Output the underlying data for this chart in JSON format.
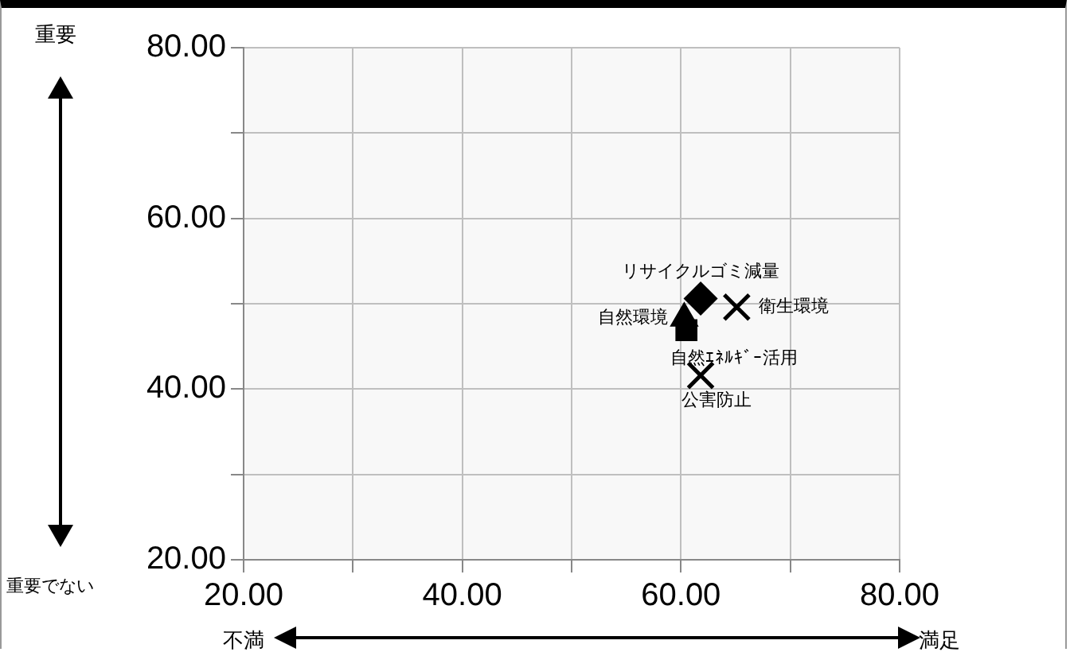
{
  "chart_data": {
    "type": "scatter",
    "xlim": [
      20,
      80
    ],
    "ylim": [
      20,
      80
    ],
    "xticks": [
      {
        "value": 20,
        "label": "20.00"
      },
      {
        "value": 30,
        "label": null
      },
      {
        "value": 40,
        "label": "40.00"
      },
      {
        "value": 50,
        "label": null
      },
      {
        "value": 60,
        "label": "60.00"
      },
      {
        "value": 70,
        "label": null
      },
      {
        "value": 80,
        "label": "80.00"
      }
    ],
    "yticks": [
      {
        "value": 20,
        "label": "20.00"
      },
      {
        "value": 30,
        "label": null
      },
      {
        "value": 40,
        "label": "40.00"
      },
      {
        "value": 50,
        "label": null
      },
      {
        "value": 60,
        "label": "60.00"
      },
      {
        "value": 70,
        "label": null
      },
      {
        "value": 80,
        "label": "80.00"
      }
    ],
    "grid": true,
    "legend": false,
    "series": [
      {
        "name": "リサイクルゴミ減量",
        "color": "#000000",
        "marker": "diamond",
        "x": [
          61.8
        ],
        "values": [
          50.6
        ]
      },
      {
        "name": "衛生環境",
        "color": "#000000",
        "marker": "cross",
        "x": [
          65.1
        ],
        "values": [
          49.6
        ]
      },
      {
        "name": "自然環境",
        "color": "#000000",
        "marker": "triangle",
        "x": [
          60.3
        ],
        "values": [
          48.3
        ]
      },
      {
        "name": "自然ｴﾈﾙｷﾞｰ活用",
        "color": "#000000",
        "marker": "square",
        "x": [
          60.5
        ],
        "values": [
          46.9
        ]
      },
      {
        "name": "公害防止",
        "color": "#000000",
        "marker": "cross",
        "x": [
          61.8
        ],
        "values": [
          41.6
        ]
      }
    ],
    "annotations": [
      "重要",
      "重要でない",
      "不満",
      "満足"
    ]
  }
}
